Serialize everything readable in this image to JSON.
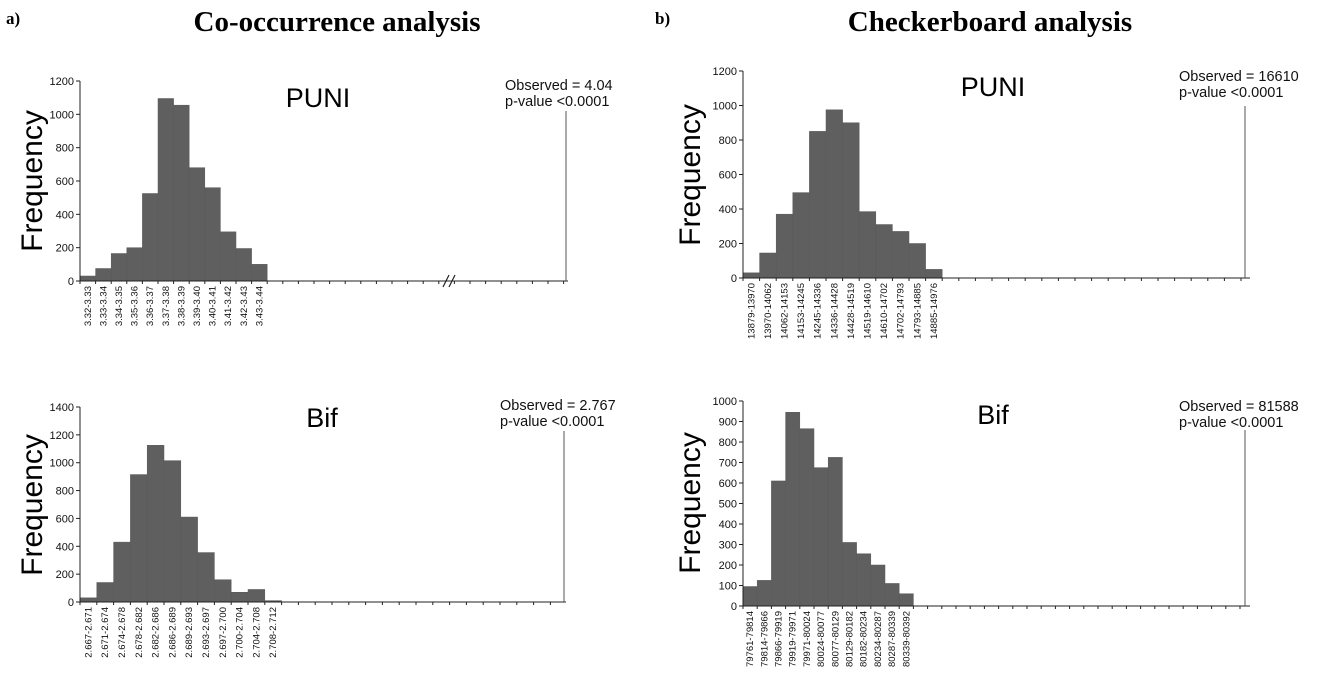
{
  "header": {
    "left_letter": "a)",
    "left_title": "Co-occurrence analysis",
    "right_letter": "b)",
    "right_title": "Checkerboard analysis"
  },
  "chart_data": [
    {
      "id": "a-puni",
      "type": "bar",
      "title": "PUNI",
      "xlabel": "",
      "ylabel": "Frequency",
      "ylim": [
        0,
        1200
      ],
      "yticks": [
        0,
        200,
        400,
        600,
        800,
        1000,
        1200
      ],
      "categories": [
        "3.32-3.33",
        "3.33-3.34",
        "3.34-3.35",
        "3.35-3.36",
        "3.36-3.37",
        "3.37-3.38",
        "3.38-3.39",
        "3.39-3.40",
        "3.40-3.41",
        "3.41-3.42",
        "3.42-3.43",
        "3.43-3.44"
      ],
      "values": [
        30,
        75,
        165,
        200,
        525,
        1095,
        1055,
        680,
        560,
        295,
        195,
        100
      ],
      "annotation": [
        "Observed = 4.04",
        "p-value <0.0001"
      ],
      "axis_break": true
    },
    {
      "id": "a-bif",
      "type": "bar",
      "title": "Bif",
      "xlabel": "",
      "ylabel": "Frequency",
      "ylim": [
        0,
        1400
      ],
      "yticks": [
        0,
        200,
        400,
        600,
        800,
        1000,
        1200,
        1400
      ],
      "categories": [
        "2.667-2.671",
        "2.671-2.674",
        "2.674-2.678",
        "2.678-2.682",
        "2.682-2.686",
        "2.686-2.689",
        "2.689-2.693",
        "2.693-2.697",
        "2.697-2.700",
        "2.700-2.704",
        "2.704-2.708",
        "2.708-2.712"
      ],
      "values": [
        30,
        140,
        430,
        915,
        1125,
        1015,
        610,
        355,
        160,
        70,
        90,
        10
      ],
      "annotation": [
        "Observed = 2.767",
        "p-value <0.0001"
      ],
      "axis_break": false
    },
    {
      "id": "b-puni",
      "type": "bar",
      "title": "PUNI",
      "xlabel": "",
      "ylabel": "Frequency",
      "ylim": [
        0,
        1200
      ],
      "yticks": [
        0,
        200,
        400,
        600,
        800,
        1000,
        1200
      ],
      "categories": [
        "13879-13970",
        "13970-14062",
        "14062-14153",
        "14153-14245",
        "14245-14336",
        "14336-14428",
        "14428-14519",
        "14519-14610",
        "14610-14702",
        "14702-14793",
        "14793-14885",
        "14885-14976"
      ],
      "values": [
        30,
        145,
        370,
        495,
        850,
        975,
        900,
        385,
        310,
        270,
        200,
        50
      ],
      "annotation": [
        "Observed = 16610",
        "p-value <0.0001"
      ],
      "axis_break": false
    },
    {
      "id": "b-bif",
      "type": "bar",
      "title": "Bif",
      "xlabel": "",
      "ylabel": "Frequency",
      "ylim": [
        0,
        1000
      ],
      "yticks": [
        0,
        100,
        200,
        300,
        400,
        500,
        600,
        700,
        800,
        900,
        1000
      ],
      "categories": [
        "79761-79814",
        "79814-79866",
        "79866-79919",
        "79919-79971",
        "79971-80024",
        "80024-80077",
        "80077-80129",
        "80129-80182",
        "80182-80234",
        "80234-80287",
        "80287-80339",
        "80339-80392"
      ],
      "values": [
        95,
        125,
        610,
        945,
        865,
        675,
        725,
        310,
        255,
        200,
        110,
        60
      ],
      "annotation": [
        "Observed = 81588",
        "p-value <0.0001"
      ],
      "axis_break": false
    }
  ]
}
